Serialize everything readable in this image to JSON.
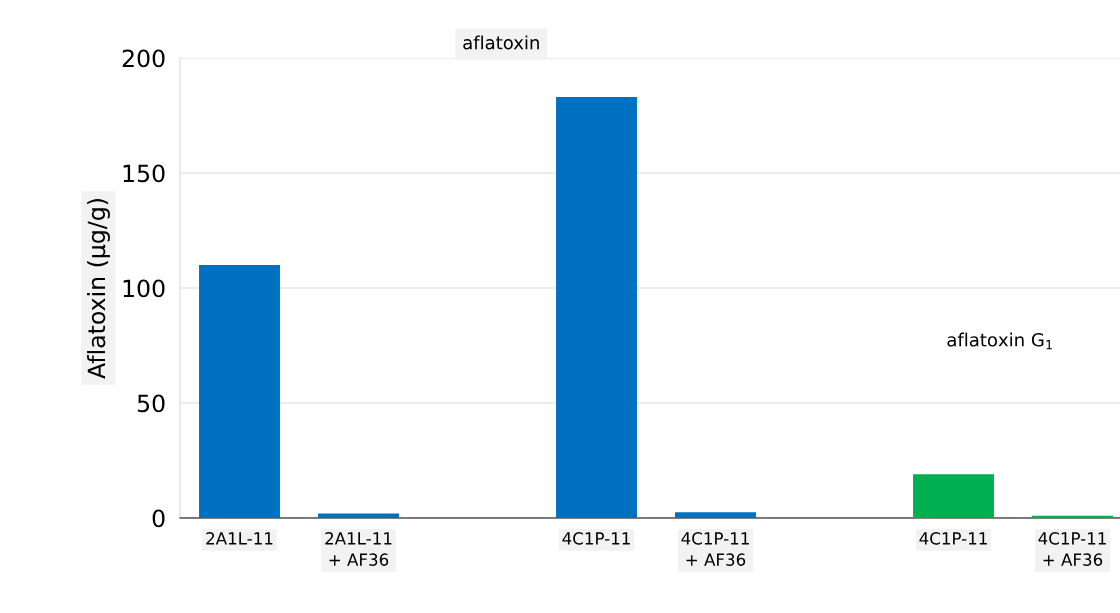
{
  "chart_data": {
    "type": "bar",
    "ylabel": "Aflatoxin (µg/g)",
    "categories": [
      "2A1L-11",
      "2A1L-11\n+ AF36",
      null,
      "4C1P-11",
      "4C1P-11\n+ AF36",
      null,
      "4C1P-11",
      "4C1P-11\n+ AF36"
    ],
    "values": [
      110,
      2,
      null,
      183,
      2.5,
      null,
      19,
      1
    ],
    "colors": [
      "#0070c0",
      "#0070c0",
      "#0070c0",
      "#0070c0",
      "#0070c0",
      "#00b050",
      "#00b050",
      "#00b050"
    ],
    "ylim": [
      0,
      200
    ],
    "yticks": [
      0,
      50,
      100,
      150,
      200
    ],
    "grid": "y",
    "legend": false,
    "annotations": [
      "aflatoxin",
      "aflatoxin G$_{1}$"
    ]
  }
}
